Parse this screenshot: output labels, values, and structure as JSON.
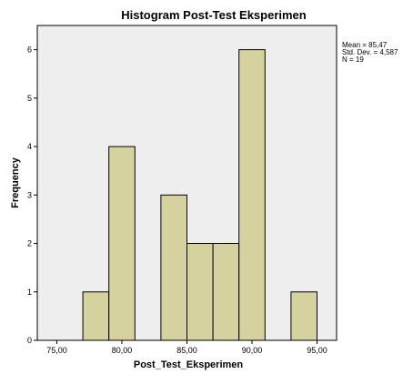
{
  "chart_data": {
    "type": "bar",
    "title": "Histogram Post-Test Eksperimen",
    "xlabel": "Post_Test_Eksperimen",
    "ylabel": "Frequency",
    "xlim": [
      73.5,
      96.5
    ],
    "ylim": [
      0,
      6.5
    ],
    "xticks": [
      75,
      80,
      85,
      90,
      95
    ],
    "xtick_labels": [
      "75,00",
      "80,00",
      "85,00",
      "90,00",
      "95,00"
    ],
    "yticks": [
      0,
      1,
      2,
      3,
      4,
      5,
      6
    ],
    "bin_width": 2,
    "bins": [
      {
        "start": 77.0,
        "end": 79.0,
        "count": 1
      },
      {
        "start": 79.0,
        "end": 81.0,
        "count": 4
      },
      {
        "start": 83.0,
        "end": 85.0,
        "count": 3
      },
      {
        "start": 85.0,
        "end": 87.0,
        "count": 2
      },
      {
        "start": 87.0,
        "end": 89.0,
        "count": 2
      },
      {
        "start": 89.0,
        "end": 91.0,
        "count": 6
      },
      {
        "start": 93.0,
        "end": 95.0,
        "count": 1
      }
    ],
    "bar_color": "#d5d2a0",
    "bar_edge_color": "#000000",
    "plot_background": "#eeeeee",
    "grid": false,
    "stats": {
      "mean": "Mean = 85,47",
      "std": "Std. Dev. = 4,587",
      "n": "N = 19"
    }
  }
}
